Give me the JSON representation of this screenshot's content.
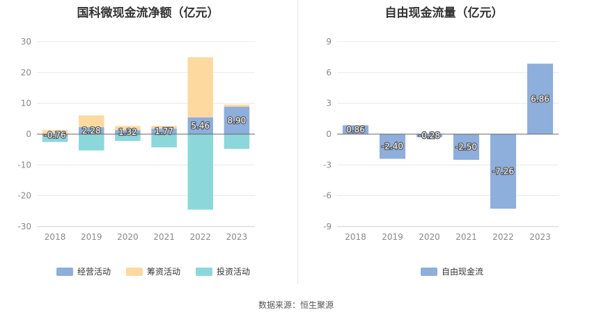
{
  "source": "数据来源：恒生聚源",
  "chart_data": [
    {
      "type": "bar",
      "stacked": true,
      "title": "国科微现金流净额（亿元）",
      "categories": [
        "2018",
        "2019",
        "2020",
        "2021",
        "2022",
        "2023"
      ],
      "ylim": [
        -30,
        30
      ],
      "yticks": [
        -30,
        -20,
        -10,
        0,
        10,
        20,
        30
      ],
      "grid": true,
      "legend_position": "bottom",
      "series": [
        {
          "name": "经营活动",
          "color": "#8eaedc",
          "values": [
            -0.76,
            2.28,
            1.32,
            1.77,
            5.46,
            8.9
          ],
          "labels": [
            "-0.76",
            "2.28",
            "1.32",
            "1.77",
            "5.46",
            "8.90"
          ]
        },
        {
          "name": "筹资活动",
          "color": "#fdd9a0",
          "values": [
            1.3,
            3.8,
            1.3,
            0.9,
            19.5,
            0.7
          ]
        },
        {
          "name": "投资活动",
          "color": "#8cd7da",
          "values": [
            -1.8,
            -5.3,
            -2.2,
            -4.3,
            -24.5,
            -4.8
          ]
        }
      ]
    },
    {
      "type": "bar",
      "title": "自由现金流量（亿元）",
      "categories": [
        "2018",
        "2019",
        "2020",
        "2021",
        "2022",
        "2023"
      ],
      "ylim": [
        -9,
        9
      ],
      "yticks": [
        -9,
        -6,
        -3,
        0,
        3,
        6,
        9
      ],
      "grid": true,
      "legend_position": "bottom",
      "series": [
        {
          "name": "自由现金流",
          "color": "#8eaedc",
          "values": [
            0.86,
            -2.4,
            -0.28,
            -2.5,
            -7.26,
            6.86
          ],
          "labels": [
            "0.86",
            "-2.40",
            "-0.28",
            "-2.50",
            "-7.26",
            "6.86"
          ]
        }
      ]
    }
  ]
}
